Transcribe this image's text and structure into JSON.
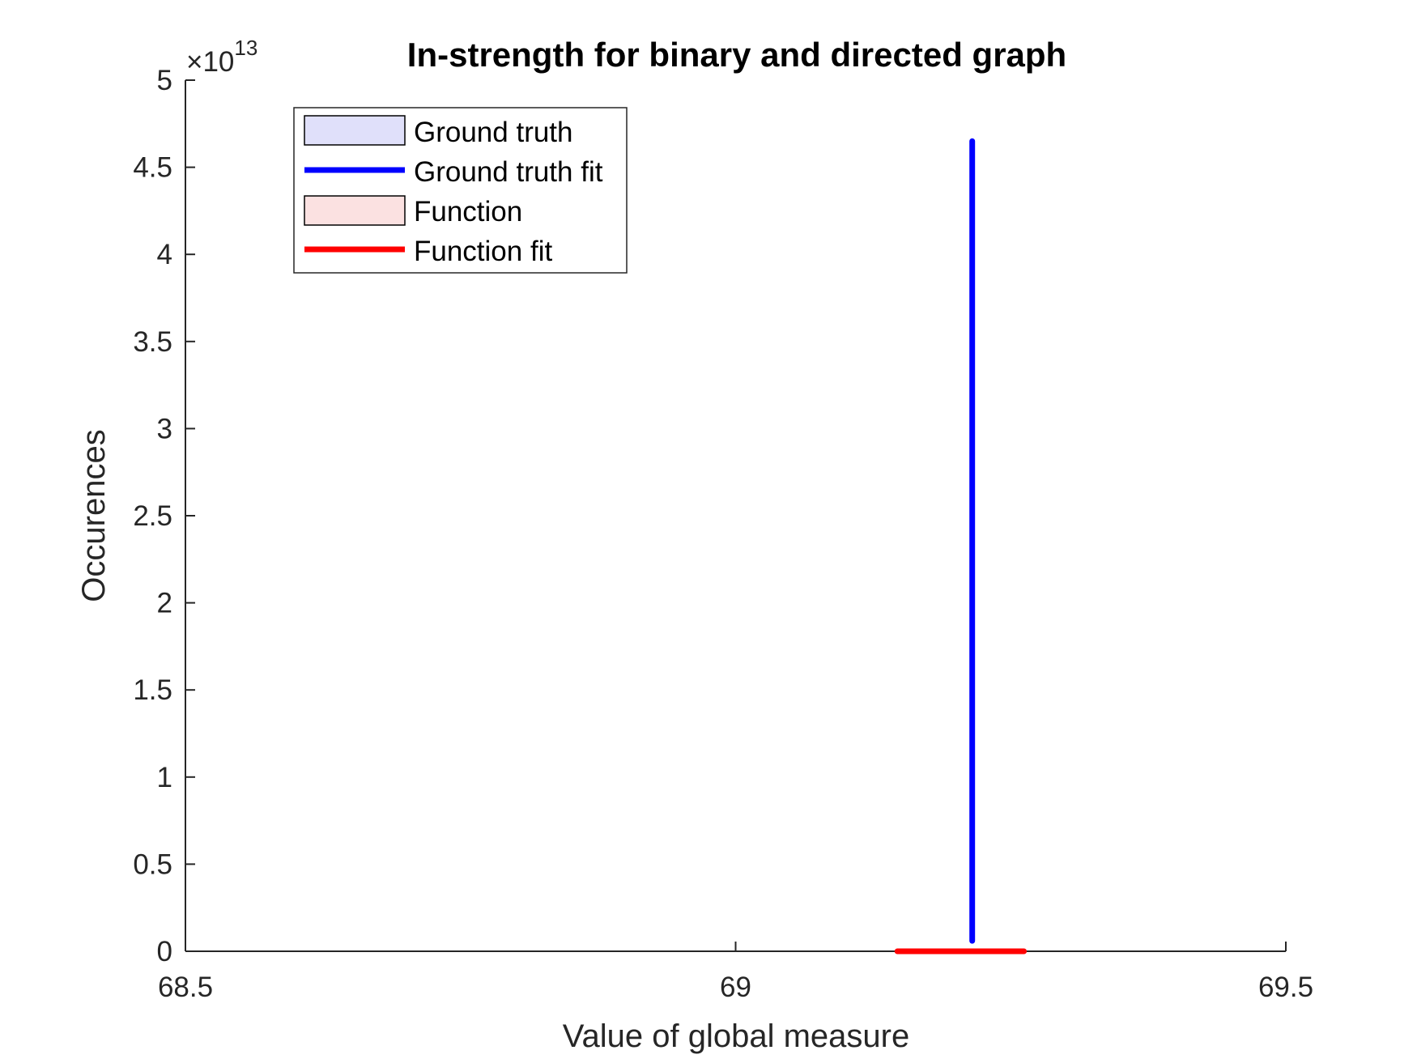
{
  "chart_data": {
    "type": "histogram",
    "title": "In-strength for binary and directed graph",
    "xlabel": "Value of global measure",
    "ylabel": "Occurences",
    "xlim": [
      68.5,
      69.5
    ],
    "ylim": [
      0,
      50000000000000.0
    ],
    "y_exponent_label": "×10",
    "y_exponent_power": "13",
    "x_ticks": [
      {
        "value": 68.5,
        "label": "68.5"
      },
      {
        "value": 69.0,
        "label": "69"
      },
      {
        "value": 69.5,
        "label": "69.5"
      }
    ],
    "y_ticks": [
      {
        "value": 0,
        "label": "0"
      },
      {
        "value": 5000000000000.0,
        "label": "0.5"
      },
      {
        "value": 10000000000000.0,
        "label": "1"
      },
      {
        "value": 15000000000000.0,
        "label": "1.5"
      },
      {
        "value": 20000000000000.0,
        "label": "2"
      },
      {
        "value": 25000000000000.0,
        "label": "2.5"
      },
      {
        "value": 30000000000000.0,
        "label": "3"
      },
      {
        "value": 35000000000000.0,
        "label": "3.5"
      },
      {
        "value": 40000000000000.0,
        "label": "4"
      },
      {
        "value": 45000000000000.0,
        "label": "4.5"
      },
      {
        "value": 50000000000000.0,
        "label": "5"
      }
    ],
    "grid": false,
    "legend_position": "top-left",
    "series": [
      {
        "name": "Ground truth",
        "kind": "histogram",
        "color": "#e0e0fa",
        "edge": "#000000",
        "values": []
      },
      {
        "name": "Ground truth fit",
        "kind": "line",
        "color": "#0000ff",
        "x": [
          69.215,
          69.215
        ],
        "y": [
          600000000000.0,
          46500000000000.0
        ]
      },
      {
        "name": "Function",
        "kind": "histogram",
        "color": "#fbe1e1",
        "edge": "#000000",
        "values": []
      },
      {
        "name": "Function fit",
        "kind": "line",
        "color": "#ff0000",
        "x": [
          69.147,
          69.262
        ],
        "y": [
          0,
          0
        ]
      }
    ]
  }
}
